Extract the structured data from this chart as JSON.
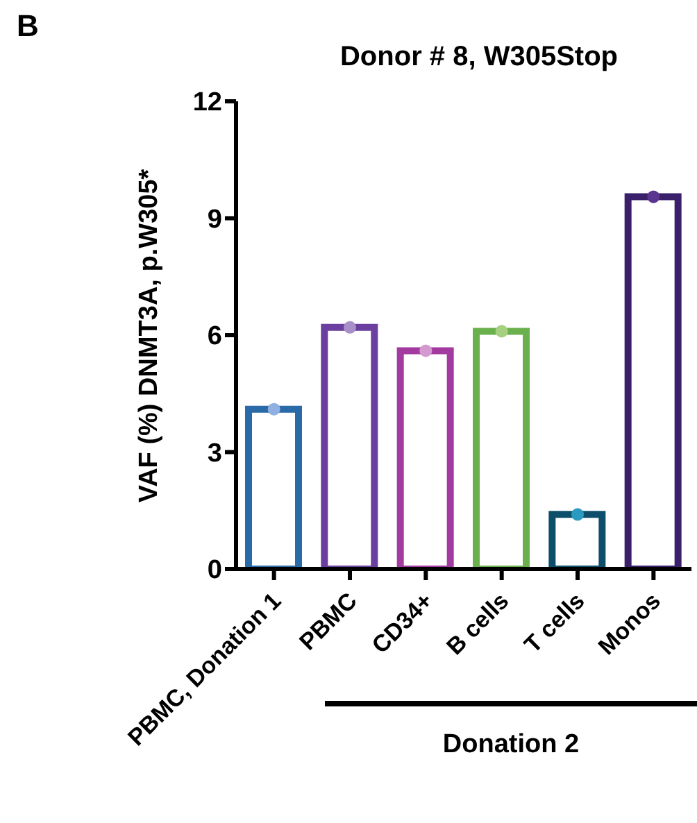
{
  "chart_data": {
    "type": "bar",
    "title": "Donor # 8, W305Stop",
    "ylabel": "VAF (%) DNMT3A, p.W305*",
    "annotations": [
      "B",
      "Donation 2"
    ],
    "categories": [
      "PBMC, Donation 1",
      "PBMC",
      "CD34+",
      "B cells",
      "T cells",
      "Monos"
    ],
    "series": [
      {
        "colors": [
          "#2a6aa8",
          "#6a3fa0",
          "#a23aa0",
          "#6ab04c",
          "#0d4f6a",
          "#3a1f6a"
        ],
        "values": [
          4.1,
          6.2,
          5.6,
          6.1,
          1.4,
          9.55
        ]
      },
      {
        "type": "scatter",
        "colors": [
          "#8fb0e0",
          "#a98fc8",
          "#d49ad0",
          "#a5d080",
          "#2a9ac0",
          "#5a3590"
        ],
        "values": [
          4.1,
          6.2,
          5.6,
          6.1,
          1.4,
          9.55
        ]
      }
    ],
    "ylim": [
      0,
      12
    ],
    "yticks": [
      0,
      3,
      6,
      9,
      12
    ],
    "grid": false,
    "legend": false,
    "marker": "circle"
  }
}
